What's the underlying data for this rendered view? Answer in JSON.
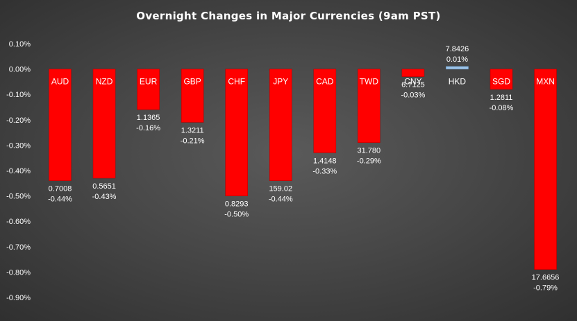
{
  "chart_data": {
    "type": "bar",
    "title": "Overnight Changes in Major Currencies (9am PST)",
    "categories": [
      "AUD",
      "NZD",
      "EUR",
      "GBP",
      "CHF",
      "JPY",
      "CAD",
      "TWD",
      "CNY",
      "HKD",
      "SGD",
      "MXN"
    ],
    "series": [
      {
        "values": [
          -0.44,
          -0.43,
          -0.16,
          -0.21,
          -0.5,
          -0.44,
          -0.33,
          -0.29,
          -0.03,
          0.01,
          -0.08,
          -0.79
        ],
        "unit": "%"
      }
    ],
    "rates": [
      "0.7008",
      "0.5651",
      "1.1365",
      "1.3211",
      "0.8293",
      "159.02",
      "1.4148",
      "31.780",
      "6.7125",
      "7.8426",
      "1.2811",
      "17.6656"
    ],
    "percent_labels": [
      "-0.44%",
      "-0.43%",
      "-0.16%",
      "-0.21%",
      "-0.50%",
      "-0.44%",
      "-0.33%",
      "-0.29%",
      "-0.03%",
      "0.01%",
      "-0.08%",
      "-0.79%"
    ],
    "y_ticks": [
      "0.10%",
      "0.00%",
      "-0.10%",
      "-0.20%",
      "-0.30%",
      "-0.40%",
      "-0.50%",
      "-0.60%",
      "-0.70%",
      "-0.80%",
      "-0.90%"
    ],
    "ylim": [
      -0.9,
      0.1
    ],
    "grid": false,
    "legend": "none",
    "colors": {
      "negative": "#ff0000",
      "positive": "#9dc3e6",
      "background": "#474747",
      "text": "#ffffff"
    }
  }
}
